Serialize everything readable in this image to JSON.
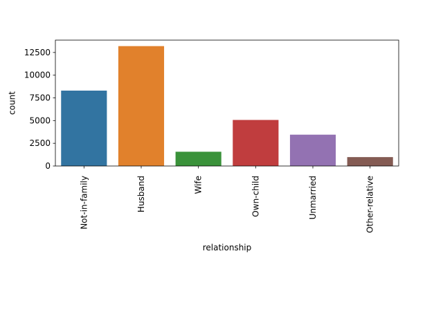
{
  "chart_data": {
    "type": "bar",
    "categories": [
      "Not-in-family",
      "Husband",
      "Wife",
      "Own-child",
      "Unmarried",
      "Other-relative"
    ],
    "values": [
      8300,
      13200,
      1570,
      5070,
      3450,
      980
    ],
    "colors": [
      "#3274a1",
      "#e1812c",
      "#3a923a",
      "#c03d3e",
      "#9372b2",
      "#845b53"
    ],
    "title": "",
    "xlabel": "relationship",
    "ylabel": "count",
    "ylim": [
      0,
      13860
    ],
    "yticks": [
      0,
      2500,
      5000,
      7500,
      10000,
      12500
    ],
    "ytick_labels": [
      "0",
      "2500",
      "5000",
      "7500",
      "10000",
      "12500"
    ],
    "grid": false,
    "legend": false
  }
}
